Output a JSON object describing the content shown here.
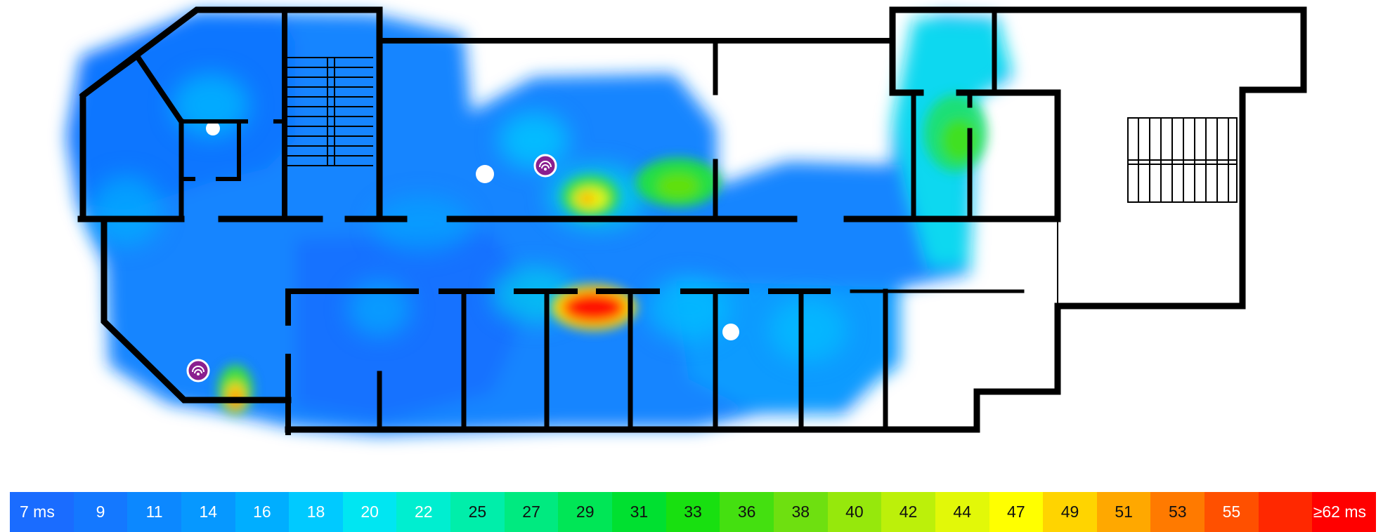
{
  "legend": {
    "unit_min_label": "7 ms",
    "unit_max_label": "≥62 ms",
    "stops": [
      {
        "label": "7 ms",
        "color": "#1a6cff"
      },
      {
        "label": "9",
        "color": "#1478ff"
      },
      {
        "label": "11",
        "color": "#0c88ff"
      },
      {
        "label": "14",
        "color": "#0698ff"
      },
      {
        "label": "16",
        "color": "#00aeff"
      },
      {
        "label": "18",
        "color": "#00caff"
      },
      {
        "label": "20",
        "color": "#00e6f2"
      },
      {
        "label": "22",
        "color": "#00eed0"
      },
      {
        "label": "25",
        "color": "#00eeaa"
      },
      {
        "label": "27",
        "color": "#00ea80"
      },
      {
        "label": "29",
        "color": "#00e656"
      },
      {
        "label": "31",
        "color": "#00e030"
      },
      {
        "label": "33",
        "color": "#18e010"
      },
      {
        "label": "36",
        "color": "#44e010"
      },
      {
        "label": "38",
        "color": "#6ee010"
      },
      {
        "label": "40",
        "color": "#96e80c"
      },
      {
        "label": "42",
        "color": "#bcf00a"
      },
      {
        "label": "44",
        "color": "#e2f808"
      },
      {
        "label": "47",
        "color": "#ffff00"
      },
      {
        "label": "49",
        "color": "#ffd400"
      },
      {
        "label": "51",
        "color": "#ffa800"
      },
      {
        "label": "53",
        "color": "#ff7a00"
      },
      {
        "label": "55",
        "color": "#ff5000"
      },
      {
        "label": "",
        "color": "#ff2800"
      },
      {
        "label": "≥62 ms",
        "color": "#ff0000"
      }
    ]
  },
  "map": {
    "metric_unit": "ms",
    "access_points": [
      {
        "name": "access-point-1",
        "icon": "wifi-ap-icon"
      },
      {
        "name": "access-point-2",
        "icon": "wifi-ap-icon"
      }
    ],
    "hotspots": [
      {
        "name": "hotspot-center-room",
        "value": 47
      },
      {
        "name": "hotspot-corridor-room",
        "value": 62
      },
      {
        "name": "hotspot-upper-right-room",
        "value": 36
      },
      {
        "name": "hotspot-lower-left",
        "value": 49
      },
      {
        "name": "hotspot-right-rooms",
        "value": 33
      }
    ]
  }
}
